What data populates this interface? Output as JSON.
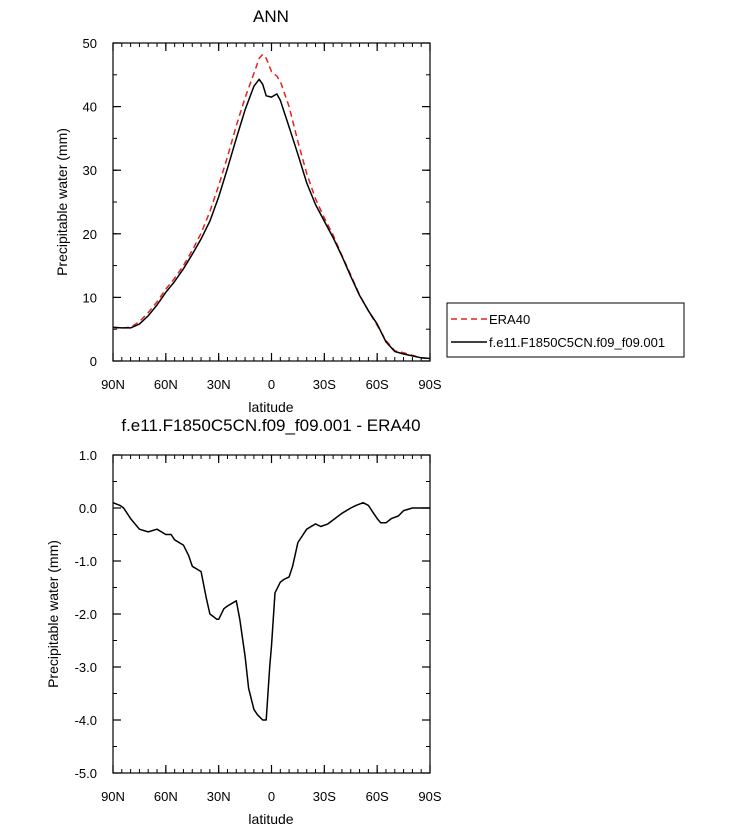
{
  "chart_data": [
    {
      "type": "line",
      "title": "ANN",
      "xlabel": "latitude",
      "ylabel": "Precipitable water (mm)",
      "xlim": [
        90,
        -90
      ],
      "ylim": [
        0,
        50
      ],
      "xticks": [
        90,
        60,
        30,
        0,
        -30,
        -60,
        -90
      ],
      "xtick_labels": [
        "90N",
        "60N",
        "30N",
        "0",
        "30S",
        "60S",
        "90S"
      ],
      "yticks": [
        0,
        10,
        20,
        30,
        40,
        50
      ],
      "ytick_labels": [
        "0",
        "10",
        "20",
        "30",
        "40",
        "50"
      ],
      "legend_position": "right",
      "series": [
        {
          "name": "ERA40",
          "color": "#e8211d",
          "dash": "dashed",
          "x": [
            90,
            85,
            80,
            75,
            70,
            65,
            60,
            55,
            50,
            45,
            40,
            35,
            30,
            25,
            20,
            15,
            10,
            7,
            5,
            3,
            0,
            -3,
            -5,
            -10,
            -15,
            -20,
            -25,
            -30,
            -35,
            -40,
            -45,
            -50,
            -55,
            -60,
            -65,
            -70,
            -75,
            -80,
            -85,
            -90
          ],
          "y": [
            5.2,
            5.2,
            5.3,
            6.2,
            7.6,
            9.3,
            11.3,
            13.0,
            15.0,
            17.4,
            20.1,
            23.5,
            27.6,
            32.1,
            37.0,
            41.4,
            45.2,
            47.6,
            48.2,
            47.6,
            45.5,
            44.8,
            44.0,
            40.0,
            34.5,
            29.5,
            25.5,
            22.5,
            19.8,
            16.6,
            13.5,
            10.4,
            7.9,
            5.6,
            3.2,
            1.6,
            1.3,
            0.9,
            0.5,
            0.4
          ]
        },
        {
          "name": "f.e11.F1850C5CN.f09_f09.001",
          "color": "#000000",
          "dash": "solid",
          "x": [
            90,
            85,
            80,
            75,
            70,
            65,
            60,
            55,
            50,
            45,
            40,
            35,
            30,
            25,
            20,
            15,
            10,
            7,
            5,
            3,
            0,
            -3,
            -5,
            -10,
            -15,
            -20,
            -25,
            -30,
            -35,
            -40,
            -45,
            -50,
            -55,
            -60,
            -65,
            -70,
            -75,
            -80,
            -85,
            -90
          ],
          "y": [
            5.3,
            5.2,
            5.2,
            5.8,
            7.1,
            8.8,
            10.8,
            12.5,
            14.5,
            16.8,
            19.2,
            22.0,
            25.8,
            30.3,
            35.0,
            39.5,
            43.2,
            44.3,
            43.5,
            41.7,
            41.5,
            42.0,
            41.0,
            36.8,
            32.5,
            28.0,
            24.6,
            22.0,
            19.4,
            16.5,
            13.3,
            10.3,
            7.9,
            5.8,
            3.0,
            1.5,
            1.1,
            0.8,
            0.5,
            0.4
          ]
        }
      ]
    },
    {
      "type": "line",
      "title": "f.e11.F1850C5CN.f09_f09.001 - ERA40",
      "xlabel": "latitude",
      "ylabel": "Precipitable water (mm)",
      "xlim": [
        90,
        -90
      ],
      "ylim": [
        -5.0,
        1.0
      ],
      "xticks": [
        90,
        60,
        30,
        0,
        -30,
        -60,
        -90
      ],
      "xtick_labels": [
        "90N",
        "60N",
        "30N",
        "0",
        "30S",
        "60S",
        "90S"
      ],
      "yticks": [
        1.0,
        0.0,
        -1.0,
        -2.0,
        -3.0,
        -4.0,
        -5.0
      ],
      "ytick_labels": [
        "1.0",
        "0.0",
        "-1.0",
        "-2.0",
        "-3.0",
        "-4.0",
        "-5.0"
      ],
      "series": [
        {
          "color": "#000000",
          "dash": "solid",
          "x": [
            90,
            86,
            84,
            80,
            75,
            70,
            65,
            60,
            57,
            55,
            50,
            47,
            45,
            40,
            37,
            35,
            33,
            31,
            30,
            27,
            25,
            20,
            18,
            15,
            13,
            10,
            8,
            5,
            3,
            1,
            0,
            -2,
            -5,
            -7,
            -10,
            -12,
            -15,
            -18,
            -20,
            -25,
            -28,
            -32,
            -36,
            -40,
            -45,
            -48,
            -52,
            -55,
            -58,
            -60,
            -62,
            -65,
            -68,
            -72,
            -75,
            -80,
            -85,
            -90
          ],
          "y": [
            0.1,
            0.05,
            0.0,
            -0.2,
            -0.4,
            -0.45,
            -0.4,
            -0.5,
            -0.5,
            -0.6,
            -0.7,
            -0.9,
            -1.1,
            -1.2,
            -1.7,
            -2.0,
            -2.05,
            -2.1,
            -2.1,
            -1.9,
            -1.85,
            -1.75,
            -2.1,
            -2.8,
            -3.4,
            -3.8,
            -3.9,
            -4.0,
            -4.0,
            -3.0,
            -2.6,
            -1.6,
            -1.4,
            -1.35,
            -1.3,
            -1.1,
            -0.65,
            -0.5,
            -0.4,
            -0.3,
            -0.35,
            -0.3,
            -0.2,
            -0.1,
            0.0,
            0.05,
            0.1,
            0.05,
            -0.1,
            -0.2,
            -0.28,
            -0.28,
            -0.2,
            -0.15,
            -0.05,
            0.0,
            0.0,
            0.0
          ]
        }
      ]
    }
  ]
}
